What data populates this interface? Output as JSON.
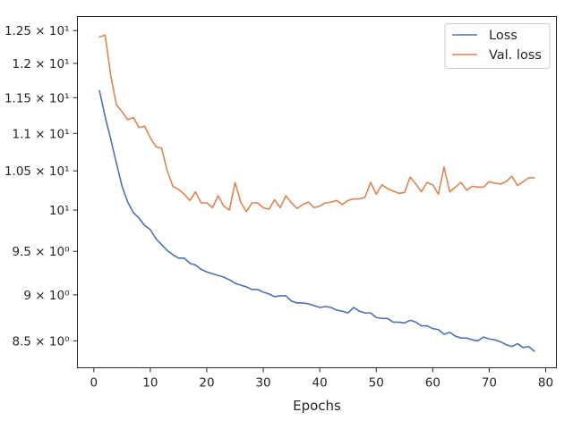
{
  "chart_data": {
    "type": "line",
    "xlabel": "Epochs",
    "ylabel": "",
    "title": "",
    "yscale": "log",
    "xlim": [
      -2.9,
      81.9
    ],
    "ylim": [
      8.22,
      12.72
    ],
    "xticks": [
      0,
      10,
      20,
      30,
      40,
      50,
      60,
      70,
      80
    ],
    "xtick_labels": [
      "0",
      "10",
      "20",
      "30",
      "40",
      "50",
      "60",
      "70",
      "80"
    ],
    "yticks": [
      8.5,
      9,
      9.5,
      10,
      10.5,
      11,
      11.5,
      12,
      12.5
    ],
    "ytick_labels": [
      "8.5 × 10⁰",
      "9 × 10⁰",
      "9.5 × 10⁰",
      "10¹",
      "1.05 × 10¹",
      "1.1 × 10¹",
      "1.15 × 10¹",
      "1.2 × 10¹",
      "1.25 × 10¹"
    ],
    "grid": false,
    "legend_position": "top-right",
    "x": [
      1,
      2,
      3,
      4,
      5,
      6,
      7,
      8,
      9,
      10,
      11,
      12,
      13,
      14,
      15,
      16,
      17,
      18,
      19,
      20,
      21,
      22,
      23,
      24,
      25,
      26,
      27,
      28,
      29,
      30,
      31,
      32,
      33,
      34,
      35,
      36,
      37,
      38,
      39,
      40,
      41,
      42,
      43,
      44,
      45,
      46,
      47,
      48,
      49,
      50,
      51,
      52,
      53,
      54,
      55,
      56,
      57,
      58,
      59,
      60,
      61,
      62,
      63,
      64,
      65,
      66,
      67,
      68,
      69,
      70,
      71,
      72,
      73,
      74,
      75,
      76,
      77,
      78
    ],
    "series": [
      {
        "name": "Loss",
        "color": "#4c72b0",
        "values": [
          11.6,
          11.23,
          10.92,
          10.6,
          10.3,
          10.1,
          9.97,
          9.9,
          9.81,
          9.76,
          9.65,
          9.58,
          9.51,
          9.46,
          9.42,
          9.42,
          9.36,
          9.34,
          9.29,
          9.26,
          9.24,
          9.22,
          9.2,
          9.17,
          9.13,
          9.11,
          9.09,
          9.06,
          9.06,
          9.03,
          9.01,
          8.98,
          8.99,
          8.99,
          8.93,
          8.91,
          8.91,
          8.9,
          8.88,
          8.86,
          8.87,
          8.86,
          8.83,
          8.82,
          8.8,
          8.86,
          8.82,
          8.8,
          8.8,
          8.75,
          8.74,
          8.74,
          8.7,
          8.7,
          8.69,
          8.72,
          8.7,
          8.66,
          8.66,
          8.63,
          8.62,
          8.57,
          8.59,
          8.55,
          8.53,
          8.53,
          8.51,
          8.5,
          8.54,
          8.52,
          8.51,
          8.49,
          8.46,
          8.44,
          8.47,
          8.43,
          8.44,
          8.39
        ]
      },
      {
        "name": "Val. loss",
        "color": "#dd8452",
        "values": [
          12.4,
          12.43,
          11.82,
          11.4,
          11.3,
          11.19,
          11.22,
          11.08,
          11.1,
          10.94,
          10.82,
          10.8,
          10.5,
          10.3,
          10.26,
          10.2,
          10.12,
          10.23,
          10.09,
          10.09,
          10.03,
          10.18,
          10.05,
          10,
          10.35,
          10.1,
          9.98,
          10.09,
          10.09,
          10.03,
          10.01,
          10.13,
          10.03,
          10.18,
          10.09,
          10.02,
          10.07,
          10.1,
          10.03,
          10.05,
          10.09,
          10.1,
          10.12,
          10.07,
          10.12,
          10.14,
          10.14,
          10.16,
          10.35,
          10.2,
          10.32,
          10.27,
          10.24,
          10.21,
          10.22,
          10.42,
          10.33,
          10.23,
          10.35,
          10.32,
          10.2,
          10.55,
          10.23,
          10.29,
          10.35,
          10.25,
          10.3,
          10.29,
          10.29,
          10.36,
          10.34,
          10.33,
          10.36,
          10.43,
          10.31,
          10.36,
          10.41,
          10.41
        ]
      }
    ]
  }
}
